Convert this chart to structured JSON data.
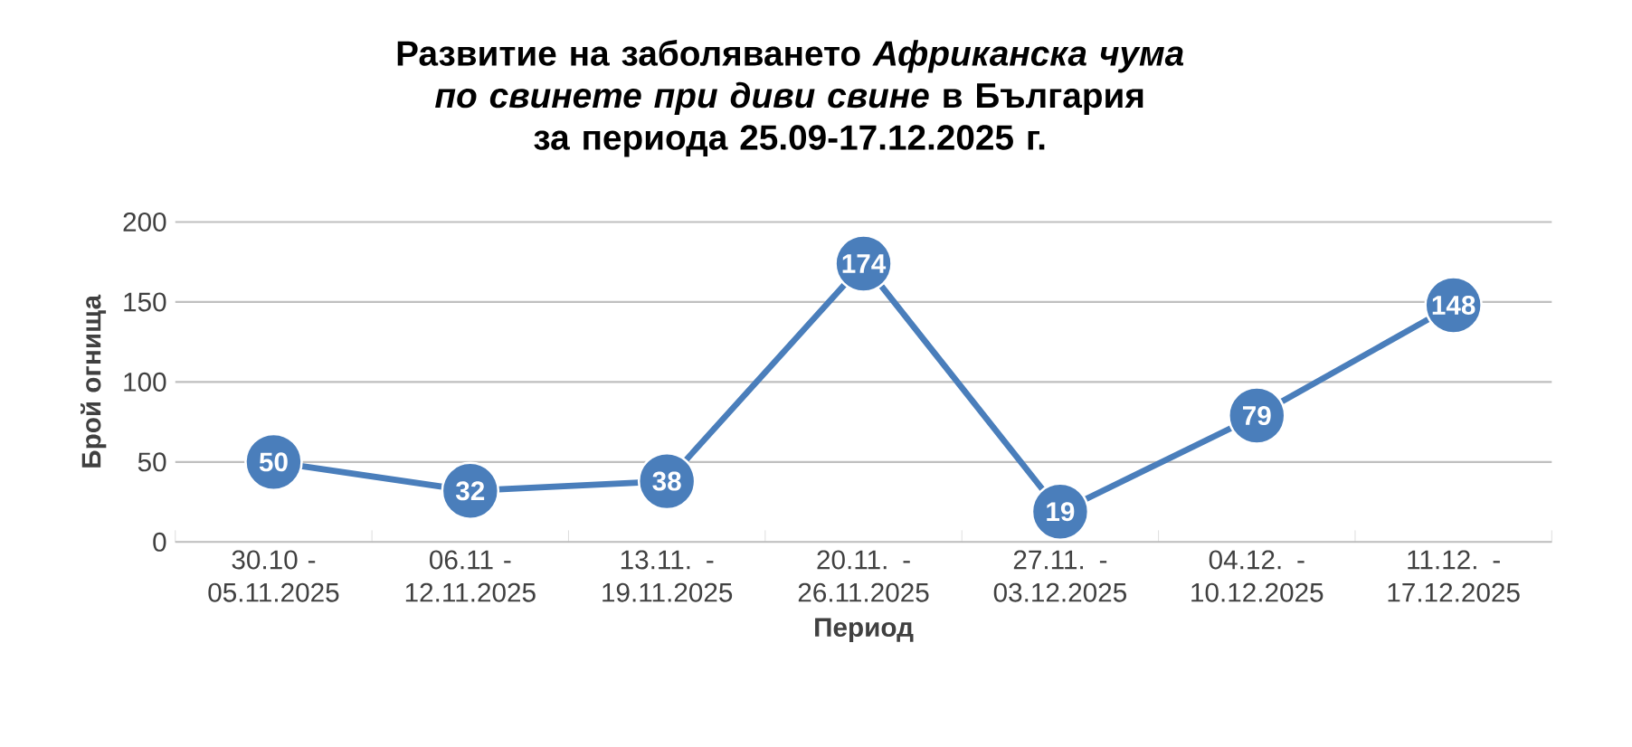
{
  "chart_data": {
    "type": "line",
    "title": "Развитие на заболяването *Африканска чума по свинете при диви свине* в България",
    "subtitle": "за периода 25.09-17.12.2025 г.",
    "xlabel": "Период",
    "ylabel": "Брой огнища",
    "categories": [
      "30.10 - 05.11.2025",
      "06.11 - 12.11.2025",
      "13.11. - 19.11.2025",
      "20.11. - 26.11.2025",
      "27.11. - 03.12.2025",
      "04.12. - 10.12.2025",
      "11.12. - 17.12.2025"
    ],
    "values": [
      50,
      32,
      38,
      174,
      19,
      79,
      148
    ],
    "color": "#4a7ebb",
    "ylim": [
      0,
      200
    ],
    "yticks": [
      0,
      50,
      100,
      150,
      200
    ],
    "grid": "y",
    "marker": "circle",
    "line_style": "solid",
    "data_labels": true
  }
}
